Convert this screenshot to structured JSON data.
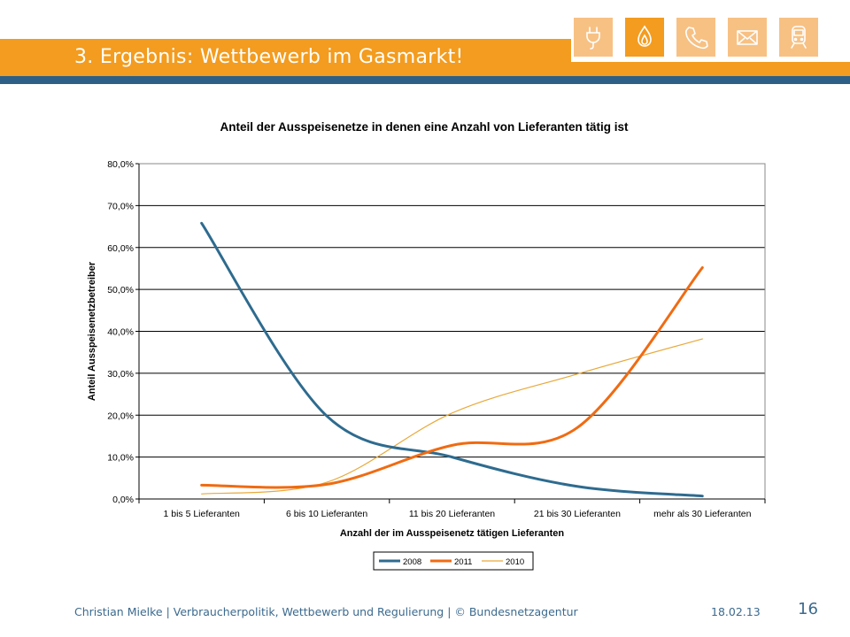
{
  "header": {
    "title": "3. Ergebnis: Wettbewerb im Gasmarkt!",
    "icons": [
      "plug-icon",
      "flame-icon",
      "phone-icon",
      "mail-icon",
      "train-icon"
    ],
    "active_icon": "flame-icon",
    "colors": {
      "orange": "#f39c1f",
      "light_orange": "#f7c184",
      "blue": "#2e5f86"
    }
  },
  "footer": {
    "text": "Christian Mielke | Verbraucherpolitik, Wettbewerb und Regulierung | © Bundesnetzagentur",
    "date": "18.02.13",
    "page": "16"
  },
  "chart_data": {
    "type": "line",
    "title": "Anteil der Ausspeisenetze in denen eine Anzahl von Lieferanten tätig ist",
    "xlabel": "Anzahl der im Ausspeisenetz tätigen Lieferanten",
    "ylabel": "Anteil Ausspeisenetzbetreiber",
    "categories": [
      "1 bis 5 Lieferanten",
      "6 bis 10 Lieferanten",
      "11 bis 20 Lieferanten",
      "21 bis 30 Lieferanten",
      "mehr als 30 Lieferanten"
    ],
    "ylim": [
      0,
      80
    ],
    "yticks": [
      "0,0%",
      "10,0%",
      "20,0%",
      "30,0%",
      "40,0%",
      "50,0%",
      "60,0%",
      "70,0%",
      "80,0%"
    ],
    "grid": true,
    "legend_position": "bottom",
    "smooth": true,
    "series": [
      {
        "name": "2008",
        "color": "#2e6b8f",
        "width": 3,
        "values": [
          65.8,
          19.8,
          10.0,
          3.0,
          0.7
        ]
      },
      {
        "name": "2011",
        "color": "#f06b12",
        "width": 3,
        "values": [
          3.3,
          3.5,
          12.8,
          17.0,
          55.2
        ]
      },
      {
        "name": "2010",
        "color": "#e8a93a",
        "width": 1.2,
        "values": [
          1.2,
          4.0,
          20.5,
          29.8,
          38.2
        ]
      }
    ]
  }
}
